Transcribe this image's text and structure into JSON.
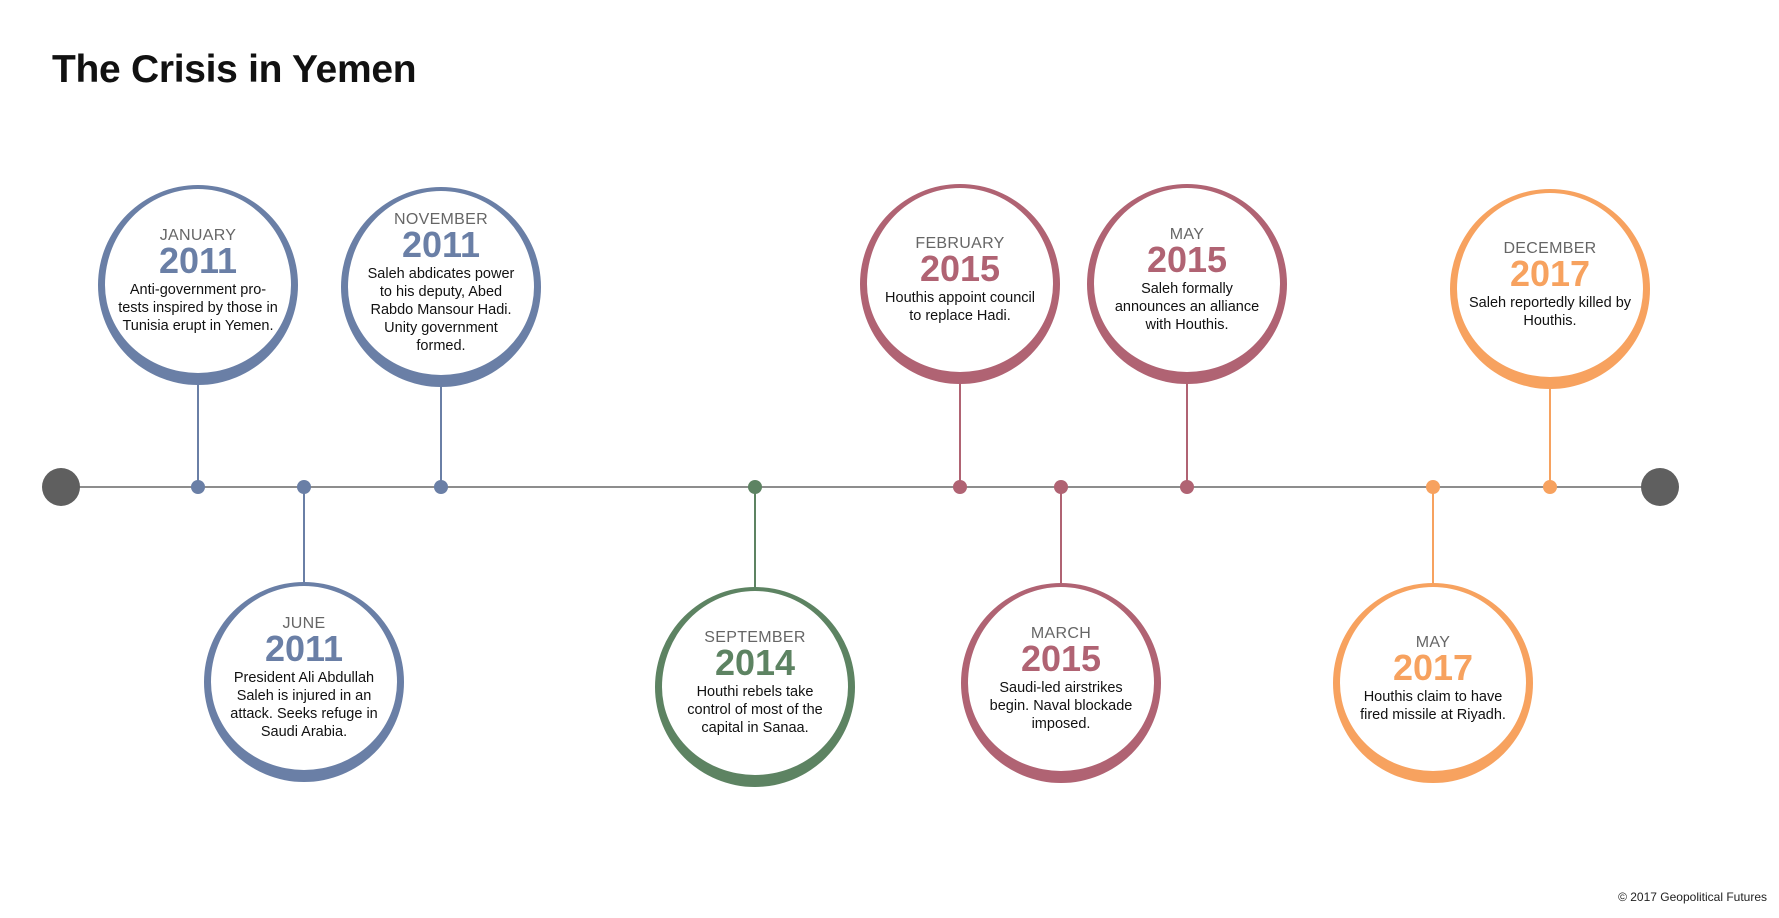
{
  "title": "The Crisis in Yemen",
  "footer": "© 2017 Geopolitical Futures",
  "colors": {
    "blue": "#6a7fa6",
    "green": "#5d8362",
    "red": "#b06373",
    "orange": "#f7a25f",
    "axis": "#8d8d8d",
    "endcap": "#5f5f5f"
  },
  "events": [
    {
      "month": "JANUARY",
      "year": "2011",
      "text": "Anti-government pro-tests inspired by those in Tunisia erupt in Yemen."
    },
    {
      "month": "JUNE",
      "year": "2011",
      "text": "President Ali Abdullah Saleh is injured in an attack. Seeks refuge in Saudi Arabia."
    },
    {
      "month": "NOVEMBER",
      "year": "2011",
      "text": "Saleh abdicates power to his deputy, Abed Rabdo Mansour Hadi. Unity government formed."
    },
    {
      "month": "SEPTEMBER",
      "year": "2014",
      "text": "Houthi rebels take control of most of the capital in Sanaa."
    },
    {
      "month": "FEBRUARY",
      "year": "2015",
      "text": "Houthis appoint council to replace Hadi."
    },
    {
      "month": "MARCH",
      "year": "2015",
      "text": "Saudi-led airstrikes begin. Naval blockade imposed."
    },
    {
      "month": "MAY",
      "year": "2015",
      "text": "Saleh formally announces an alliance with Houthis."
    },
    {
      "month": "MAY",
      "year": "2017",
      "text": "Houthis claim to have fired missile at Riyadh."
    },
    {
      "month": "DECEMBER",
      "year": "2017",
      "text": "Saleh reportedly killed by Houthis."
    }
  ]
}
